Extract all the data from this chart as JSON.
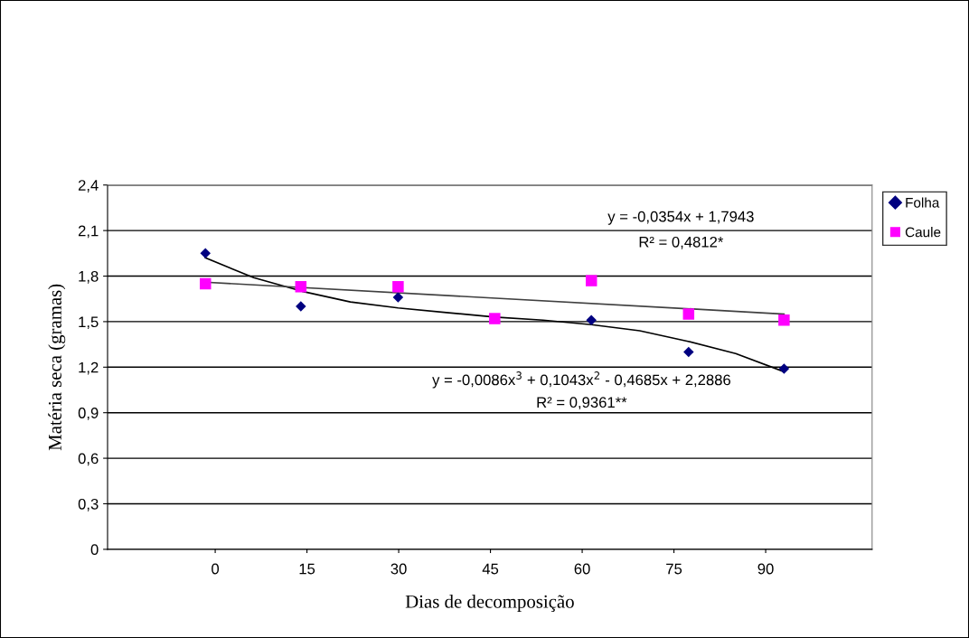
{
  "chart_data": {
    "type": "scatter",
    "xlabel": "Dias de decomposição",
    "ylabel": "Matéria seca (gramas)",
    "x": [
      -1.6,
      14,
      29.9,
      45.7,
      61.5,
      77.4,
      93
    ],
    "series": [
      {
        "name": "Folha",
        "color": "#000080",
        "marker": "diamond",
        "values": [
          1.95,
          1.6,
          1.66,
          null,
          1.51,
          1.3,
          1.19
        ]
      },
      {
        "name": "Caule",
        "color": "#ff00ff",
        "marker": "square",
        "values": [
          1.75,
          1.73,
          1.73,
          1.52,
          1.77,
          1.55,
          1.51
        ]
      },
      {
        "type": "line",
        "color": "#000000",
        "marker": "none",
        "x": [
          -1.6,
          6.3,
          14.2,
          22.1,
          29.9,
          37.8,
          45.7,
          53.6,
          61.5,
          69.4,
          77.3,
          85.1,
          93
        ],
        "values": [
          1.92,
          1.79,
          1.7,
          1.63,
          1.59,
          1.56,
          1.53,
          1.51,
          1.48,
          1.44,
          1.37,
          1.29,
          1.17
        ]
      },
      {
        "type": "line",
        "color": "#404040",
        "marker": "none",
        "x": [
          -1.6,
          93
        ],
        "values": [
          1.76,
          1.55
        ]
      }
    ],
    "xlim": [
      -17.6,
      107.4
    ],
    "xticks": [
      0,
      15,
      30,
      45,
      60,
      75,
      90
    ],
    "ylim": [
      0,
      2.4
    ],
    "yticks": [
      0,
      {
        "value": 0.3,
        "label": "0,3"
      },
      {
        "value": 0.6,
        "label": "0,6"
      },
      {
        "value": 0.9,
        "label": "0,9"
      },
      {
        "value": 1.2,
        "label": "1,2"
      },
      {
        "value": 1.5,
        "label": "1,5"
      },
      {
        "value": 1.8,
        "label": "1,8"
      },
      {
        "value": 2.1,
        "label": "2,1"
      },
      {
        "value": 2.4,
        "label": "2,4"
      }
    ],
    "annotations": [
      "y = -0,0354x + 1,7943",
      "R² = 0,4812*",
      "y = -0,0086x$^{3}$ + 0,1043x$^{2}$ - 0,4685x + 2,2886",
      "R² = 0,9361**"
    ],
    "grid": "y",
    "legend": "right"
  }
}
